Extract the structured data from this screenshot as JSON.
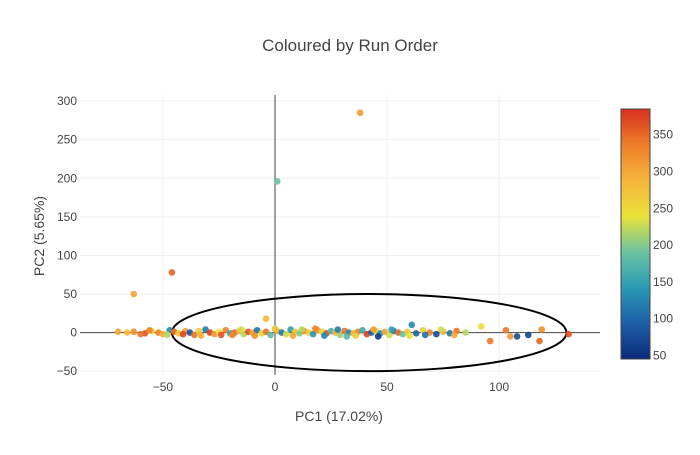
{
  "chart_data": {
    "type": "scatter",
    "title": "Coloured by Run Order",
    "xlabel": "PC1 (17.02%)",
    "ylabel": "PC2 (5.65%)",
    "xlim": [
      -87,
      145
    ],
    "ylim": [
      -55,
      308
    ],
    "xticks": [
      -50,
      0,
      50,
      100
    ],
    "xtick_labels": [
      "−50",
      "0",
      "50",
      "100"
    ],
    "yticks": [
      -50,
      0,
      50,
      100,
      150,
      200,
      250,
      300
    ],
    "ytick_labels": [
      "−50",
      "0",
      "50",
      "100",
      "150",
      "200",
      "250",
      "300"
    ],
    "grid": true,
    "colorbar": {
      "min": 45,
      "max": 385,
      "ticks": [
        50,
        100,
        150,
        200,
        250,
        300,
        350
      ],
      "tick_labels": [
        "50",
        "100",
        "150",
        "200",
        "250",
        "300",
        "350"
      ],
      "colorscale": [
        "#0a2a7a",
        "#1f5fa8",
        "#2a9ab5",
        "#6cc4a0",
        "#e9e23a",
        "#f5b43c",
        "#ef7d2a",
        "#d7301f"
      ]
    },
    "ellipse": {
      "center": [
        42,
        0
      ],
      "rx": 88,
      "ry": 50,
      "stroke": "#000000"
    },
    "points": [
      {
        "x": 38,
        "y": 285,
        "c": 310
      },
      {
        "x": 1,
        "y": 196,
        "c": 190
      },
      {
        "x": -46,
        "y": 78,
        "c": 350
      },
      {
        "x": -63,
        "y": 50,
        "c": 300
      },
      {
        "x": -4,
        "y": 18,
        "c": 280
      },
      {
        "x": 92,
        "y": 8,
        "c": 240
      },
      {
        "x": 61,
        "y": 10,
        "c": 130
      },
      {
        "x": 108,
        "y": -5,
        "c": 80
      },
      {
        "x": 113,
        "y": -3,
        "c": 70
      },
      {
        "x": 103,
        "y": 3,
        "c": 340
      },
      {
        "x": 119,
        "y": 4,
        "c": 320
      },
      {
        "x": 131,
        "y": -2,
        "c": 360
      },
      {
        "x": 96,
        "y": -11,
        "c": 340
      },
      {
        "x": 105,
        "y": -5,
        "c": 310
      },
      {
        "x": 118,
        "y": -11,
        "c": 350
      },
      {
        "x": -70,
        "y": 1,
        "c": 300
      },
      {
        "x": -66,
        "y": 0,
        "c": 280
      },
      {
        "x": -63,
        "y": 1,
        "c": 320
      },
      {
        "x": -58,
        "y": -1,
        "c": 360
      },
      {
        "x": -55,
        "y": 2,
        "c": 250
      },
      {
        "x": -52,
        "y": 0,
        "c": 330
      },
      {
        "x": -50,
        "y": -2,
        "c": 290
      },
      {
        "x": -47,
        "y": 3,
        "c": 130
      },
      {
        "x": -45,
        "y": 1,
        "c": 350
      },
      {
        "x": -43,
        "y": -1,
        "c": 270
      },
      {
        "x": -40,
        "y": 2,
        "c": 300
      },
      {
        "x": -38,
        "y": 0,
        "c": 90
      },
      {
        "x": -36,
        "y": -3,
        "c": 340
      },
      {
        "x": -34,
        "y": 2,
        "c": 260
      },
      {
        "x": -31,
        "y": 4,
        "c": 120
      },
      {
        "x": -29,
        "y": 0,
        "c": 370
      },
      {
        "x": -27,
        "y": -2,
        "c": 310
      },
      {
        "x": -25,
        "y": 1,
        "c": 240
      },
      {
        "x": -22,
        "y": 3,
        "c": 330
      },
      {
        "x": -20,
        "y": -1,
        "c": 160
      },
      {
        "x": -18,
        "y": 0,
        "c": 350
      },
      {
        "x": -16,
        "y": 2,
        "c": 280
      },
      {
        "x": -14,
        "y": -2,
        "c": 220
      },
      {
        "x": -12,
        "y": 1,
        "c": 360
      },
      {
        "x": -10,
        "y": 0,
        "c": 300
      },
      {
        "x": -8,
        "y": 3,
        "c": 110
      },
      {
        "x": -6,
        "y": -1,
        "c": 250
      },
      {
        "x": -4,
        "y": 1,
        "c": 340
      },
      {
        "x": -2,
        "y": -3,
        "c": 180
      },
      {
        "x": 1,
        "y": 2,
        "c": 290
      },
      {
        "x": 3,
        "y": 0,
        "c": 120
      },
      {
        "x": 5,
        "y": -2,
        "c": 230
      },
      {
        "x": 7,
        "y": 4,
        "c": 150
      },
      {
        "x": 9,
        "y": 1,
        "c": 270
      },
      {
        "x": 11,
        "y": -1,
        "c": 200
      },
      {
        "x": 13,
        "y": 2,
        "c": 330
      },
      {
        "x": 15,
        "y": 0,
        "c": 260
      },
      {
        "x": 17,
        "y": -2,
        "c": 140
      },
      {
        "x": 19,
        "y": 3,
        "c": 310
      },
      {
        "x": 21,
        "y": 1,
        "c": 250
      },
      {
        "x": 23,
        "y": -1,
        "c": 360
      },
      {
        "x": 25,
        "y": 2,
        "c": 170
      },
      {
        "x": 27,
        "y": 0,
        "c": 290
      },
      {
        "x": 29,
        "y": -3,
        "c": 210
      },
      {
        "x": 31,
        "y": 2,
        "c": 340
      },
      {
        "x": 33,
        "y": 0,
        "c": 130
      },
      {
        "x": 35,
        "y": -1,
        "c": 280
      },
      {
        "x": 37,
        "y": 1,
        "c": 330
      },
      {
        "x": 39,
        "y": 3,
        "c": 160
      },
      {
        "x": 41,
        "y": -2,
        "c": 370
      },
      {
        "x": 43,
        "y": 0,
        "c": 90
      },
      {
        "x": 45,
        "y": 2,
        "c": 250
      },
      {
        "x": 47,
        "y": -1,
        "c": 140
      },
      {
        "x": 49,
        "y": 1,
        "c": 300
      },
      {
        "x": 51,
        "y": -3,
        "c": 230
      },
      {
        "x": 53,
        "y": 2,
        "c": 120
      },
      {
        "x": 55,
        "y": 0,
        "c": 350
      },
      {
        "x": 57,
        "y": -2,
        "c": 190
      },
      {
        "x": 59,
        "y": 1,
        "c": 270
      },
      {
        "x": 63,
        "y": -1,
        "c": 100
      },
      {
        "x": 66,
        "y": 3,
        "c": 260
      },
      {
        "x": 69,
        "y": 0,
        "c": 330
      },
      {
        "x": 72,
        "y": -2,
        "c": 80
      },
      {
        "x": 75,
        "y": 1,
        "c": 290
      },
      {
        "x": 78,
        "y": -1,
        "c": 120
      },
      {
        "x": 81,
        "y": 2,
        "c": 340
      },
      {
        "x": 85,
        "y": 0,
        "c": 220
      },
      {
        "x": -60,
        "y": -2,
        "c": 340
      },
      {
        "x": -48,
        "y": -3,
        "c": 220
      },
      {
        "x": -33,
        "y": -4,
        "c": 290
      },
      {
        "x": -24,
        "y": -3,
        "c": 360
      },
      {
        "x": -15,
        "y": 4,
        "c": 230
      },
      {
        "x": -9,
        "y": -4,
        "c": 320
      },
      {
        "x": 0,
        "y": 5,
        "c": 270
      },
      {
        "x": 8,
        "y": -4,
        "c": 300
      },
      {
        "x": 18,
        "y": 5,
        "c": 330
      },
      {
        "x": 28,
        "y": 4,
        "c": 120
      },
      {
        "x": 36,
        "y": -4,
        "c": 260
      },
      {
        "x": 44,
        "y": 4,
        "c": 310
      },
      {
        "x": 52,
        "y": 4,
        "c": 150
      },
      {
        "x": 60,
        "y": -4,
        "c": 240
      },
      {
        "x": 67,
        "y": -3,
        "c": 110
      },
      {
        "x": 74,
        "y": 4,
        "c": 230
      },
      {
        "x": 80,
        "y": -3,
        "c": 300
      },
      {
        "x": 46,
        "y": -5,
        "c": 60
      },
      {
        "x": 22,
        "y": -4,
        "c": 130
      },
      {
        "x": -19,
        "y": -3,
        "c": 330
      },
      {
        "x": -41,
        "y": -2,
        "c": 370
      },
      {
        "x": -56,
        "y": 3,
        "c": 330
      },
      {
        "x": 12,
        "y": 4,
        "c": 220
      },
      {
        "x": 32,
        "y": -5,
        "c": 180
      }
    ]
  }
}
